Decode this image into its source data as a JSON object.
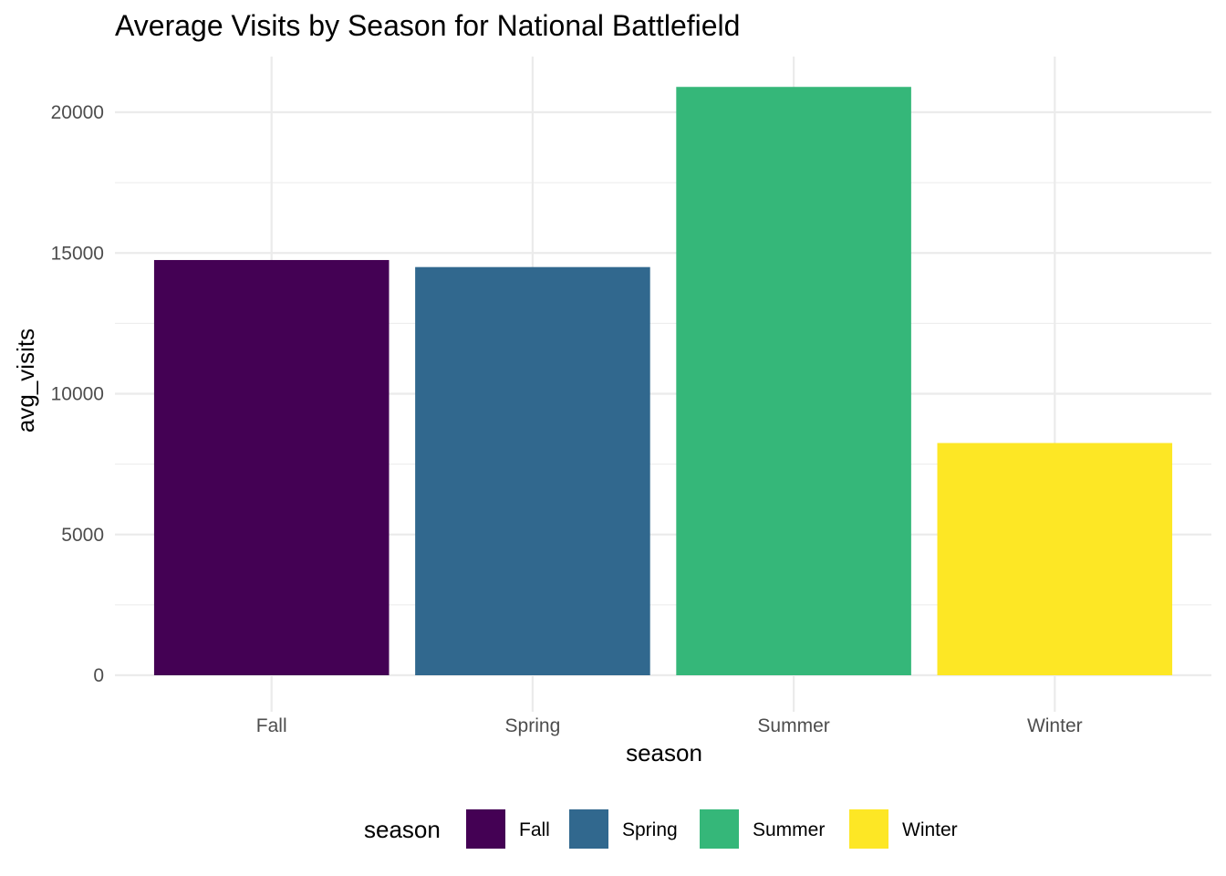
{
  "chart_data": {
    "type": "bar",
    "title": "Average Visits by Season for National Battlefield",
    "xlabel": "season",
    "ylabel": "avg_visits",
    "categories": [
      "Fall",
      "Spring",
      "Summer",
      "Winter"
    ],
    "values": [
      14750,
      14500,
      20900,
      8250
    ],
    "colors": [
      "#440154",
      "#31688e",
      "#35b779",
      "#fde725"
    ],
    "ylim": [
      0,
      22000
    ],
    "yticks": [
      0,
      5000,
      10000,
      15000,
      20000
    ],
    "ytick_labels": [
      "0",
      "5000",
      "10000",
      "15000",
      "20000"
    ],
    "grid": true,
    "legend": {
      "title": "season",
      "position": "bottom",
      "entries": [
        "Fall",
        "Spring",
        "Summer",
        "Winter"
      ]
    }
  }
}
